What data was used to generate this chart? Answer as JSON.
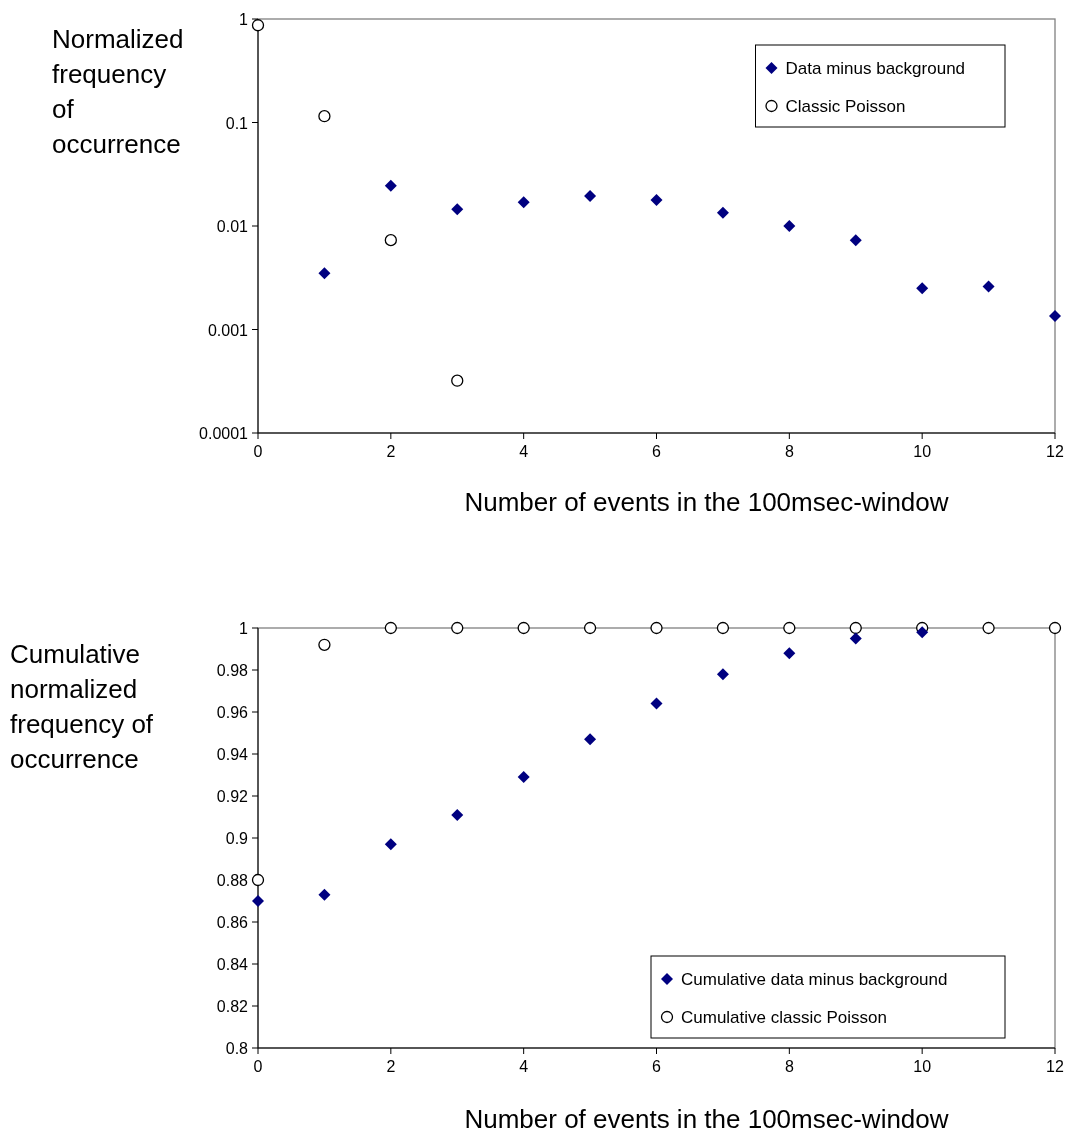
{
  "chart_data": [
    {
      "type": "scatter",
      "ylabel": "Normalized frequency of occurrence",
      "xlabel": "Number of events in the 100msec-window",
      "log": "y",
      "xlim": [
        0,
        12
      ],
      "xticks": [
        0,
        2,
        4,
        6,
        8,
        10,
        12
      ],
      "ylim": [
        0.0001,
        1
      ],
      "yticks": [
        0.0001,
        0.001,
        0.01,
        0.1,
        1
      ],
      "grid": false,
      "legend": "top right",
      "series": [
        {
          "name": "Data minus background",
          "color": "#000080",
          "marker": "diamond",
          "x": [
            1,
            2,
            3,
            4,
            5,
            6,
            7,
            8,
            9,
            10,
            11,
            12
          ],
          "values": [
            0.0035,
            0.0245,
            0.0145,
            0.017,
            0.0195,
            0.0178,
            0.0134,
            0.01,
            0.0073,
            0.0025,
            0.0026,
            0.00135
          ]
        },
        {
          "name": "Classic Poisson",
          "color": "#000000",
          "marker": "circle",
          "x": [
            0,
            1,
            2,
            3
          ],
          "values": [
            0.87,
            0.115,
            0.0073,
            0.00032
          ]
        }
      ]
    },
    {
      "type": "scatter",
      "ylabel": "Cumulative normalized frequency of occurrence",
      "xlabel": "Number of events in the 100msec-window",
      "xlim": [
        0,
        12
      ],
      "xticks": [
        0,
        2,
        4,
        6,
        8,
        10,
        12
      ],
      "ylim": [
        0.8,
        1
      ],
      "yticks": [
        0.8,
        0.82,
        0.84,
        0.86,
        0.88,
        0.9,
        0.92,
        0.94,
        0.96,
        0.98,
        1
      ],
      "grid": false,
      "legend": "bottom right",
      "series": [
        {
          "name": "Cumulative data minus background",
          "color": "#000080",
          "marker": "diamond",
          "x": [
            0,
            1,
            2,
            3,
            4,
            5,
            6,
            7,
            8,
            9,
            10
          ],
          "values": [
            0.87,
            0.873,
            0.897,
            0.911,
            0.929,
            0.947,
            0.964,
            0.978,
            0.988,
            0.995,
            0.998
          ]
        },
        {
          "name": "Cumulative classic Poisson",
          "color": "#000000",
          "marker": "circle",
          "x": [
            0,
            1,
            2,
            3,
            4,
            5,
            6,
            7,
            8,
            9,
            10,
            11,
            12
          ],
          "values": [
            0.88,
            0.992,
            1,
            1,
            1,
            1,
            1,
            1,
            1,
            1,
            1,
            1,
            1
          ]
        }
      ]
    }
  ]
}
